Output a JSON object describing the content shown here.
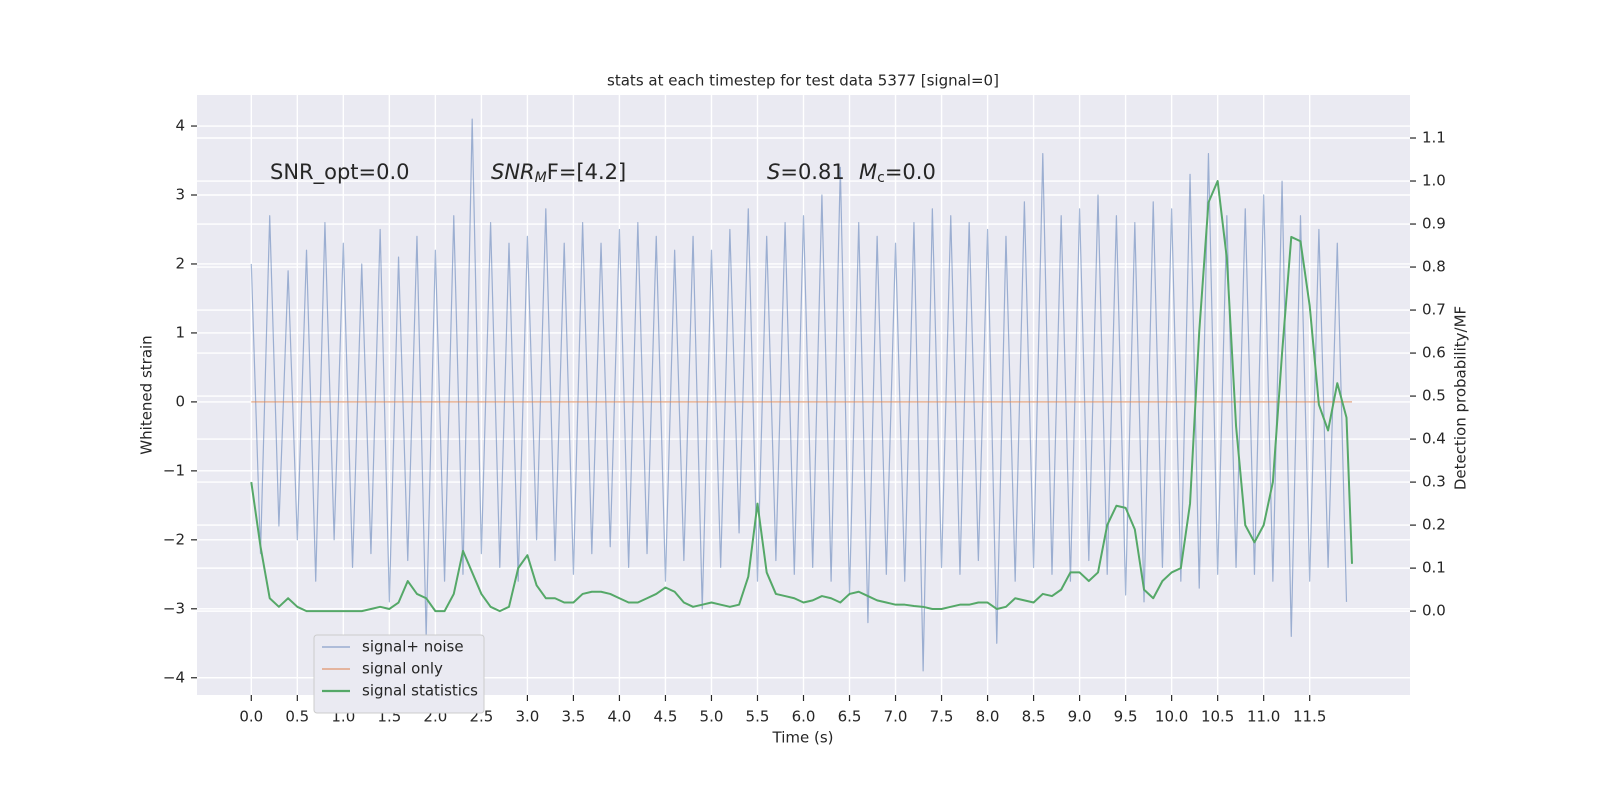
{
  "chart_data": {
    "type": "line",
    "title": "stats at each timestep for test data 5377 [signal=0]",
    "xlabel": "Time (s)",
    "ylabel": "Whitened strain",
    "y2label": "Detection probability/MF",
    "annotations": [
      [
        "SNR_opt=0.0"
      ],
      [
        "SNR",
        "M",
        "F=[4.2]"
      ],
      [
        "S",
        "=0.81"
      ],
      [
        "M",
        "c",
        "=0.0"
      ]
    ],
    "grid": true,
    "legend": "lower left",
    "xlim": [
      -0.59,
      12.59
    ],
    "ylim": [
      -4.25,
      4.45
    ],
    "y2lim": [
      -0.195,
      1.2
    ],
    "xticks": [
      {
        "value": 0,
        "label": "0.0"
      },
      {
        "value": 0.5,
        "label": "0.5"
      },
      {
        "value": 1,
        "label": "1.0"
      },
      {
        "value": 1.5,
        "label": "1.5"
      },
      {
        "value": 2,
        "label": "2.0"
      },
      {
        "value": 2.5,
        "label": "2.5"
      },
      {
        "value": 3,
        "label": "3.0"
      },
      {
        "value": 3.5,
        "label": "3.5"
      },
      {
        "value": 4,
        "label": "4.0"
      },
      {
        "value": 4.5,
        "label": "4.5"
      },
      {
        "value": 5,
        "label": "5.0"
      },
      {
        "value": 5.5,
        "label": "5.5"
      },
      {
        "value": 6,
        "label": "6.0"
      },
      {
        "value": 6.5,
        "label": "6.5"
      },
      {
        "value": 7,
        "label": "7.0"
      },
      {
        "value": 7.5,
        "label": "7.5"
      },
      {
        "value": 8,
        "label": "8.0"
      },
      {
        "value": 8.5,
        "label": "8.5"
      },
      {
        "value": 9,
        "label": "9.0"
      },
      {
        "value": 9.5,
        "label": "9.5"
      },
      {
        "value": 10,
        "label": "10.0"
      },
      {
        "value": 10.5,
        "label": "10.5"
      },
      {
        "value": 11,
        "label": "11.0"
      },
      {
        "value": 11.5,
        "label": "11.5"
      }
    ],
    "yticks": [
      {
        "value": -4,
        "label": "−4"
      },
      {
        "value": -3,
        "label": "−3"
      },
      {
        "value": -2,
        "label": "−2"
      },
      {
        "value": -1,
        "label": "−1"
      },
      0,
      1,
      2,
      3,
      4
    ],
    "y2ticks": [
      {
        "value": 0,
        "label": "0.0"
      },
      {
        "value": 0.1,
        "label": "0.1"
      },
      {
        "value": 0.2,
        "label": "0.2"
      },
      {
        "value": 0.3,
        "label": "0.3"
      },
      {
        "value": 0.4,
        "label": "0.4"
      },
      {
        "value": 0.5,
        "label": "0.5"
      },
      {
        "value": 0.6,
        "label": "0.6"
      },
      {
        "value": 0.7,
        "label": "0.7"
      },
      {
        "value": 0.8,
        "label": "0.8"
      },
      {
        "value": 0.9,
        "label": "0.9"
      },
      {
        "value": 1,
        "label": "1.0"
      },
      {
        "value": 1.1,
        "label": "1.1"
      }
    ],
    "series": [
      {
        "name": "signal+ noise",
        "color": "#4c72b0",
        "x": [
          0,
          0.1,
          0.2,
          0.3,
          0.4,
          0.5,
          0.6,
          0.7,
          0.8,
          0.9,
          1,
          1.1,
          1.2,
          1.3,
          1.4,
          1.5,
          1.6,
          1.7,
          1.8,
          1.9,
          2,
          2.1,
          2.2,
          2.3,
          2.4,
          2.5,
          2.6,
          2.7,
          2.8,
          2.9,
          3,
          3.1,
          3.2,
          3.3,
          3.4,
          3.5,
          3.6,
          3.7,
          3.8,
          3.9,
          4,
          4.1,
          4.2,
          4.3,
          4.4,
          4.5,
          4.6,
          4.7,
          4.8,
          4.9,
          5,
          5.1,
          5.2,
          5.3,
          5.4,
          5.5,
          5.6,
          5.7,
          5.8,
          5.9,
          6,
          6.1,
          6.2,
          6.3,
          6.4,
          6.5,
          6.6,
          6.7,
          6.8,
          6.9,
          7,
          7.1,
          7.2,
          7.3,
          7.4,
          7.5,
          7.6,
          7.7,
          7.8,
          7.9,
          8,
          8.1,
          8.2,
          8.3,
          8.4,
          8.5,
          8.6,
          8.7,
          8.8,
          8.9,
          9,
          9.1,
          9.2,
          9.3,
          9.4,
          9.5,
          9.6,
          9.7,
          9.8,
          9.9,
          10,
          10.1,
          10.2,
          10.3,
          10.4,
          10.5,
          10.6,
          10.7,
          10.8,
          10.9,
          11,
          11.1,
          11.2,
          11.3,
          11.4,
          11.5,
          11.6,
          11.7,
          11.8,
          11.9
        ],
        "values": [
          2.0,
          -2.2,
          2.7,
          -1.8,
          1.9,
          -2.0,
          2.2,
          -2.6,
          2.6,
          -2.0,
          2.3,
          -2.4,
          2.0,
          -2.2,
          2.5,
          -2.9,
          2.1,
          -2.3,
          2.4,
          -3.4,
          2.2,
          -2.6,
          2.7,
          -2.5,
          4.1,
          -2.2,
          2.6,
          -2.4,
          2.3,
          -2.6,
          2.4,
          -2.0,
          2.8,
          -2.3,
          2.3,
          -2.5,
          2.6,
          -2.2,
          2.3,
          -2.1,
          2.5,
          -2.4,
          2.6,
          -2.2,
          2.4,
          -2.6,
          2.2,
          -2.3,
          2.4,
          -3.0,
          2.2,
          -2.4,
          2.5,
          -1.9,
          2.8,
          -2.6,
          2.4,
          -2.3,
          2.6,
          -2.5,
          2.7,
          -2.4,
          3.0,
          -2.6,
          3.4,
          -2.8,
          2.6,
          -3.2,
          2.4,
          -2.5,
          2.3,
          -2.6,
          2.6,
          -3.9,
          2.8,
          -2.4,
          2.7,
          -2.5,
          2.6,
          -2.3,
          2.5,
          -3.5,
          2.4,
          -2.6,
          2.9,
          -2.4,
          3.6,
          -2.5,
          2.7,
          -2.6,
          2.8,
          -2.3,
          3.0,
          -2.5,
          2.7,
          -2.8,
          2.6,
          -2.9,
          2.9,
          -2.4,
          2.8,
          -2.6,
          3.3,
          -2.7,
          3.6,
          -2.5,
          2.7,
          -2.4,
          2.8,
          -2.5,
          3.0,
          -2.6,
          3.2,
          -3.4,
          2.7,
          -2.6,
          2.5,
          -2.4,
          2.3,
          -2.9
        ]
      },
      {
        "name": "signal only",
        "color": "#dd8452",
        "x": [
          0,
          11.96
        ],
        "values": [
          0,
          0
        ]
      },
      {
        "name": "signal statistics",
        "color": "#55a868",
        "axis": "y2",
        "x": [
          0,
          0.1,
          0.2,
          0.3,
          0.4,
          0.5,
          0.6,
          0.7,
          0.8,
          0.9,
          1,
          1.1,
          1.2,
          1.3,
          1.4,
          1.5,
          1.6,
          1.7,
          1.8,
          1.9,
          2,
          2.1,
          2.2,
          2.3,
          2.4,
          2.5,
          2.6,
          2.7,
          2.8,
          2.9,
          3,
          3.1,
          3.2,
          3.3,
          3.4,
          3.5,
          3.6,
          3.7,
          3.8,
          3.9,
          4,
          4.1,
          4.2,
          4.3,
          4.4,
          4.5,
          4.6,
          4.7,
          4.8,
          4.9,
          5,
          5.1,
          5.2,
          5.3,
          5.4,
          5.5,
          5.6,
          5.7,
          5.8,
          5.9,
          6,
          6.1,
          6.2,
          6.3,
          6.4,
          6.5,
          6.6,
          6.7,
          6.8,
          6.9,
          7,
          7.1,
          7.2,
          7.3,
          7.4,
          7.5,
          7.6,
          7.7,
          7.8,
          7.9,
          8,
          8.1,
          8.2,
          8.3,
          8.4,
          8.5,
          8.6,
          8.7,
          8.8,
          8.9,
          9,
          9.1,
          9.2,
          9.3,
          9.4,
          9.5,
          9.6,
          9.7,
          9.8,
          9.9,
          10,
          10.1,
          10.2,
          10.3,
          10.4,
          10.5,
          10.6,
          10.7,
          10.8,
          10.9,
          11,
          11.1,
          11.2,
          11.3,
          11.4,
          11.5,
          11.6,
          11.7,
          11.8,
          11.9,
          11.96
        ],
        "values": [
          0.3,
          0.15,
          0.03,
          0.01,
          0.03,
          0.01,
          0.0,
          0.0,
          0.0,
          0.0,
          0.0,
          0.0,
          0.0,
          0.005,
          0.01,
          0.005,
          0.02,
          0.07,
          0.04,
          0.03,
          0.0,
          0.0,
          0.04,
          0.14,
          0.09,
          0.04,
          0.01,
          0.0,
          0.01,
          0.1,
          0.13,
          0.06,
          0.03,
          0.03,
          0.02,
          0.02,
          0.04,
          0.045,
          0.045,
          0.04,
          0.03,
          0.02,
          0.02,
          0.03,
          0.04,
          0.055,
          0.045,
          0.02,
          0.01,
          0.015,
          0.02,
          0.015,
          0.01,
          0.015,
          0.08,
          0.25,
          0.09,
          0.04,
          0.035,
          0.03,
          0.02,
          0.025,
          0.035,
          0.03,
          0.02,
          0.04,
          0.045,
          0.035,
          0.025,
          0.02,
          0.015,
          0.015,
          0.012,
          0.01,
          0.005,
          0.005,
          0.01,
          0.015,
          0.015,
          0.02,
          0.02,
          0.005,
          0.01,
          0.03,
          0.025,
          0.02,
          0.04,
          0.035,
          0.05,
          0.09,
          0.09,
          0.07,
          0.09,
          0.2,
          0.245,
          0.24,
          0.19,
          0.05,
          0.03,
          0.07,
          0.09,
          0.1,
          0.25,
          0.65,
          0.95,
          1.0,
          0.82,
          0.43,
          0.2,
          0.16,
          0.2,
          0.3,
          0.6,
          0.87,
          0.86,
          0.71,
          0.48,
          0.42,
          0.53,
          0.45,
          0.11
        ]
      }
    ]
  }
}
